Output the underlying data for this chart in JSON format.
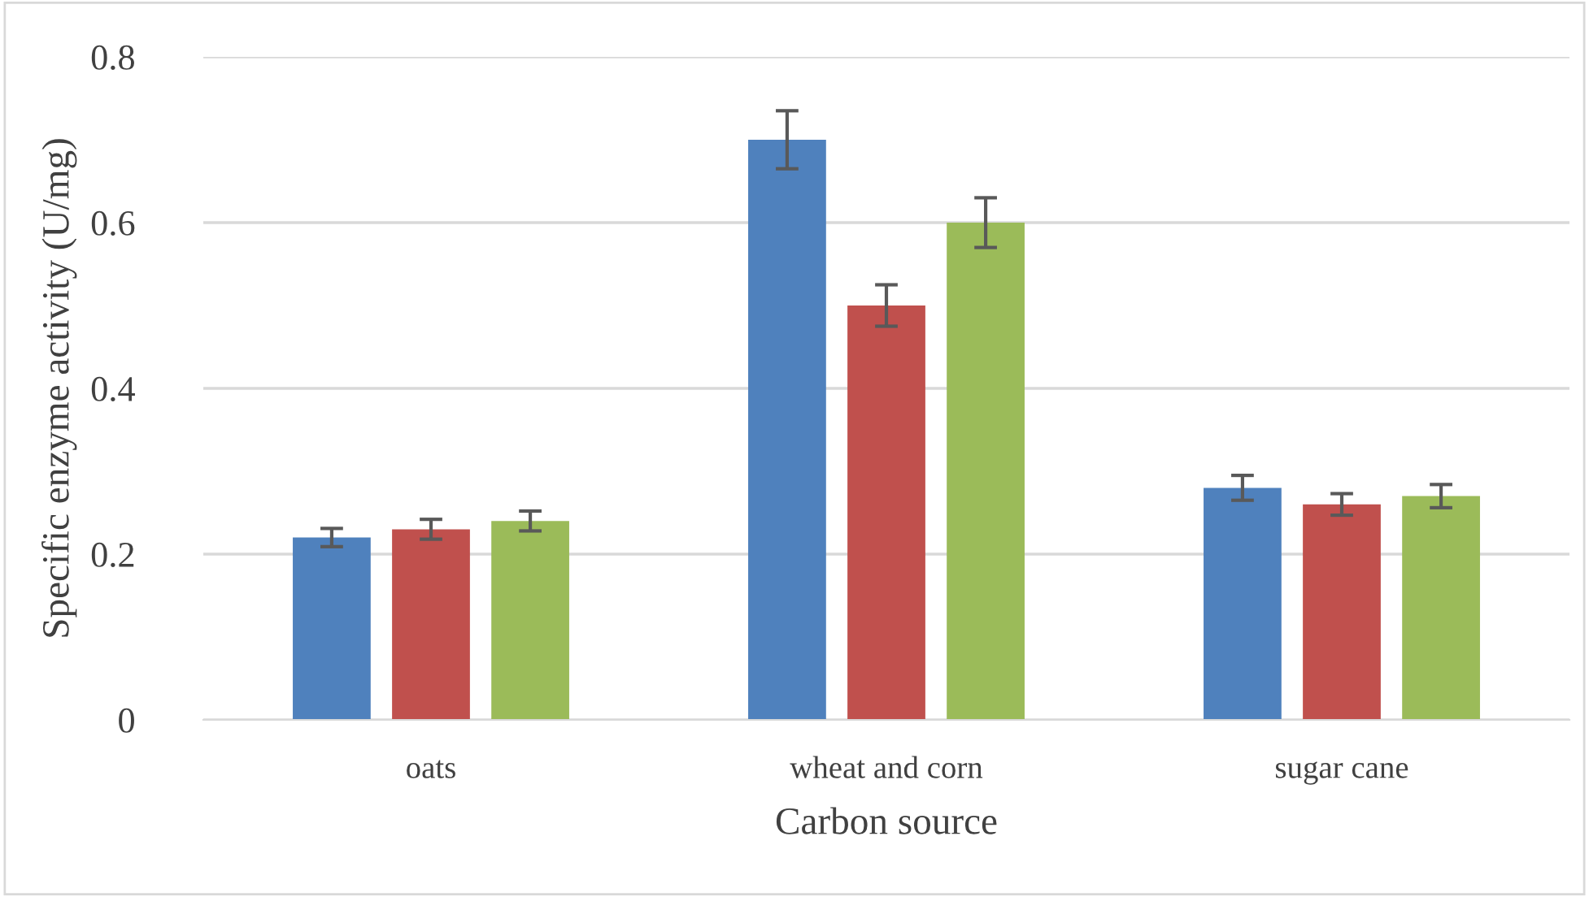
{
  "chart_data": {
    "type": "bar",
    "xlabel": "Carbon source",
    "ylabel": "Specific enzyme activity (U/mg)",
    "categories": [
      "oats",
      "wheat and corn",
      "sugar cane"
    ],
    "series": [
      {
        "color": "#4f81bd",
        "values": [
          0.22,
          0.7,
          0.28
        ],
        "errors": [
          0.011,
          0.035,
          0.015
        ]
      },
      {
        "color": "#c0504d",
        "values": [
          0.23,
          0.5,
          0.26
        ],
        "errors": [
          0.012,
          0.025,
          0.013
        ]
      },
      {
        "color": "#9bbb59",
        "values": [
          0.24,
          0.6,
          0.27
        ],
        "errors": [
          0.012,
          0.03,
          0.014
        ]
      }
    ],
    "ylim": [
      0,
      0.8
    ],
    "yticks": [
      {
        "value": 0,
        "label": "0"
      },
      0.2,
      0.4,
      0.6,
      0.8
    ],
    "grid": "y",
    "legend": false
  }
}
